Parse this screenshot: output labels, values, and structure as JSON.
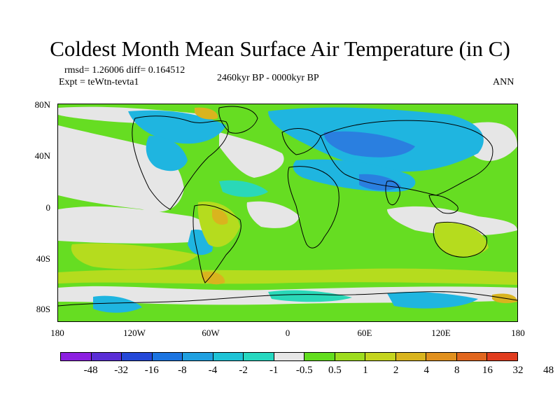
{
  "title": "Coldest Month Mean Surface Air Temperature (in C)",
  "rmsd_text": "rmsd= 1.26006 diff= 0.164512",
  "expt_text": "Expt = teWtn-tevta1",
  "period_text": "2460kyr BP - 0000kyr BP",
  "season_text": "ANN",
  "lat_ticks": [
    "80N",
    "40N",
    "0",
    "40S",
    "80S"
  ],
  "lon_ticks": [
    "180",
    "120W",
    "60W",
    "0",
    "60E",
    "120E",
    "180"
  ],
  "colorbar": {
    "colors": [
      "#8c1fe0",
      "#5a2ed6",
      "#2448d8",
      "#1b74e0",
      "#1fa0e0",
      "#1ec3d6",
      "#26d8c0",
      "#e6e6e6",
      "#62dd1e",
      "#9ddc1e",
      "#c4d41e",
      "#d9b41e",
      "#e0901e",
      "#e0661e",
      "#e03c1e"
    ],
    "labels": [
      "-48",
      "-32",
      "-16",
      "-8",
      "-4",
      "-2",
      "-1",
      "-0.5",
      "0.5",
      "1",
      "2",
      "4",
      "8",
      "16",
      "32",
      "48"
    ]
  },
  "map": {
    "background_color": "#66dd22",
    "neutral_color": "#e6e6e6",
    "cool_color": "#1fb5e0",
    "deep_cool_color": "#2a7fe0",
    "mint_color": "#2ad8b8",
    "warm_color": "#b5dc1e",
    "hot_color": "#d9b41e",
    "coast_color": "#000000"
  }
}
